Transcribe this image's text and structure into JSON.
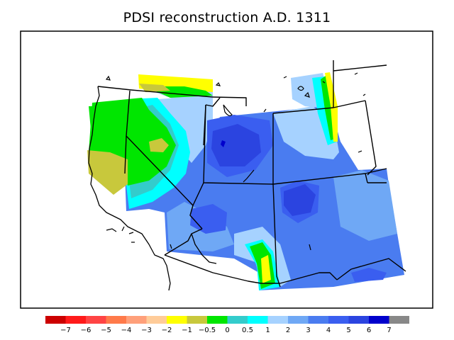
{
  "title": "PDSI reconstruction A.D. 1311",
  "legend": {
    "bins": [
      {
        "color": "#cc0000"
      },
      {
        "color": "#ff1a1a"
      },
      {
        "color": "#ff4444"
      },
      {
        "color": "#ff7a4a"
      },
      {
        "color": "#ffa07a"
      },
      {
        "color": "#ffcc99"
      },
      {
        "color": "#ffff00"
      },
      {
        "color": "#c8c83c"
      },
      {
        "color": "#00e600"
      },
      {
        "color": "#33cccc"
      },
      {
        "color": "#00ffff"
      },
      {
        "color": "#a6d2ff"
      },
      {
        "color": "#6fa8f5"
      },
      {
        "color": "#4a7cf0"
      },
      {
        "color": "#3a5ef0"
      },
      {
        "color": "#2b44e0"
      },
      {
        "color": "#0000cc"
      },
      {
        "color": "#888888"
      }
    ],
    "labels": [
      "−7",
      "−6",
      "−5",
      "−4",
      "−3",
      "−2",
      "−1",
      "−0.5",
      "0",
      "0.5",
      "1",
      "2",
      "3",
      "4",
      "5",
      "6",
      "7"
    ]
  },
  "colors": {
    "frame": "#000000",
    "boundary": "#000000",
    "yellow": "#ffff00",
    "olive": "#c8c83c",
    "green": "#00e600",
    "teal": "#33cccc",
    "cyan": "#00ffff",
    "lightblue": "#a6d2ff",
    "blue2": "#6fa8f5",
    "blue3": "#4a7cf0",
    "blue4": "#3a5ef0",
    "blue5": "#2b44e0",
    "blue6": "#0000cc"
  }
}
